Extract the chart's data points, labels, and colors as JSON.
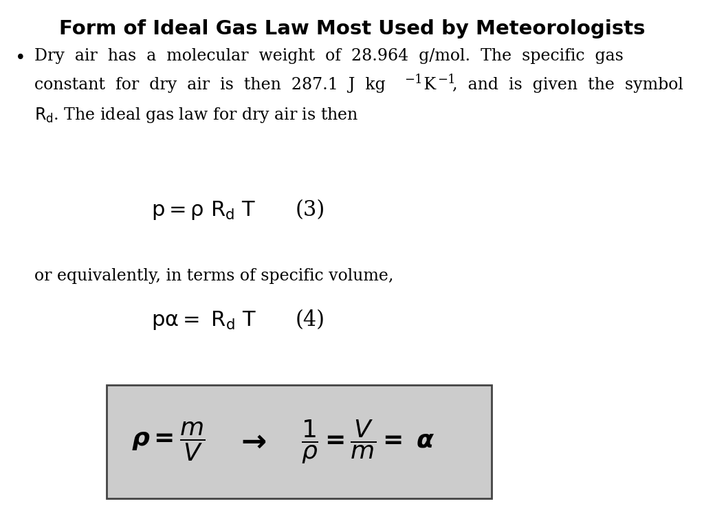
{
  "title": "Form of Ideal Gas Law Most Used by Meteorologists",
  "title_fontsize": 21,
  "bg_color": "#ffffff",
  "text_color": "#000000",
  "eq1_label": "(3)",
  "eq2_label": "(4)",
  "equiv_text": "or equivalently, in terms of specific volume,",
  "box_bg": "#cccccc",
  "box_edge": "#444444",
  "font_size_body": 17,
  "font_size_eq": 22,
  "font_size_box": 26
}
